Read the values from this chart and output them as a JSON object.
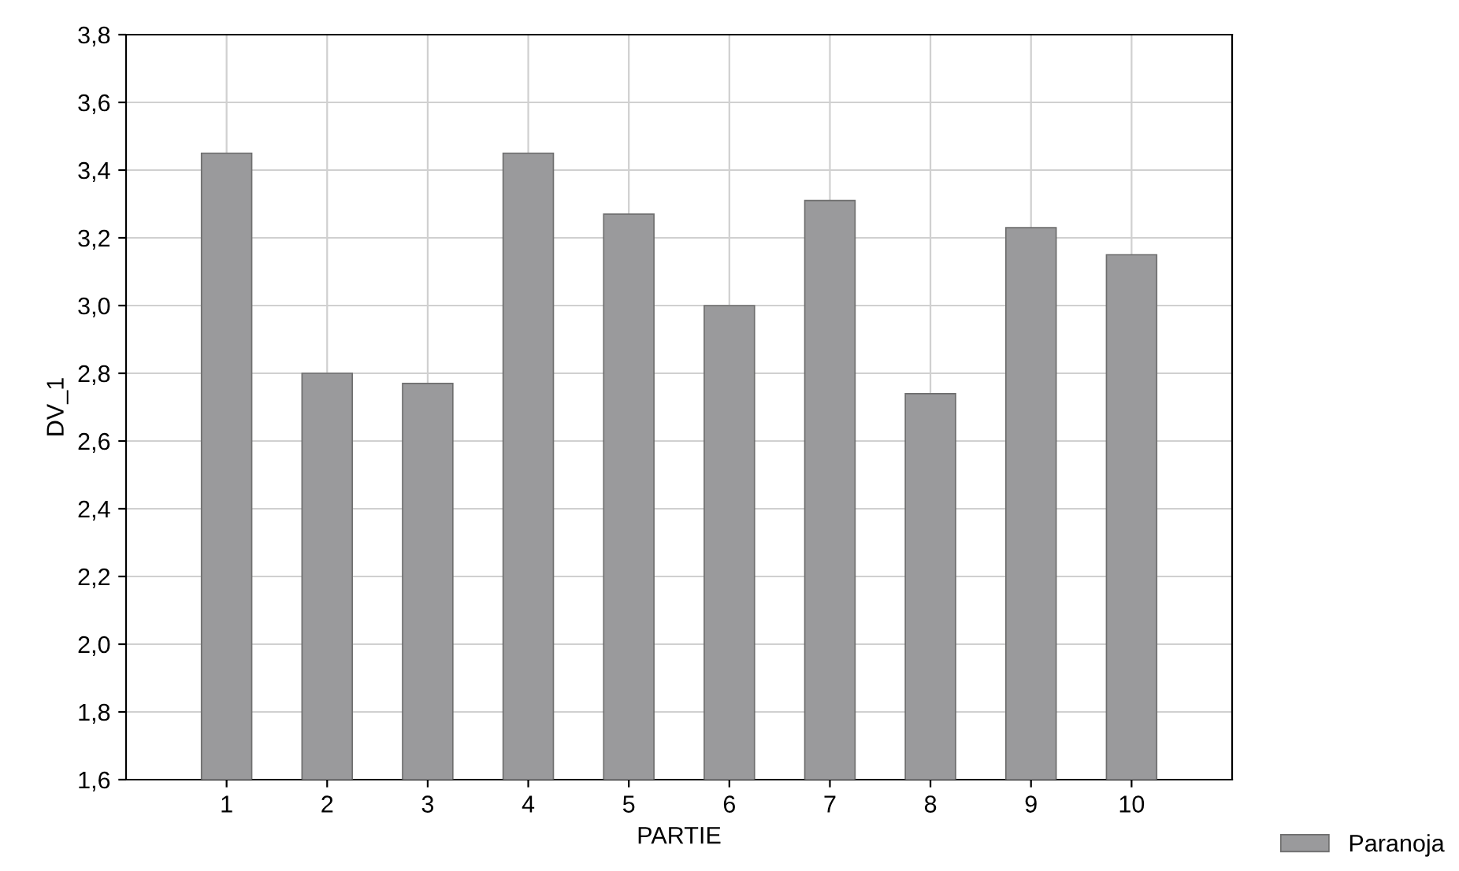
{
  "chart_data": {
    "type": "bar",
    "xlabel": "PARTIE",
    "ylabel": "DV_1",
    "categories": [
      "1",
      "2",
      "3",
      "4",
      "5",
      "6",
      "7",
      "8",
      "9",
      "10"
    ],
    "series": [
      {
        "name": "Paranoja",
        "color": "#9a9a9c",
        "values": [
          3.45,
          2.8,
          2.77,
          3.45,
          3.27,
          3.0,
          3.31,
          2.74,
          3.23,
          3.15
        ]
      }
    ],
    "ylim": [
      1.6,
      3.8
    ],
    "yticks": [
      {
        "value": 1.6,
        "label": "1,6"
      },
      {
        "value": 1.8,
        "label": "1,8"
      },
      {
        "value": 2.0,
        "label": "2,0"
      },
      {
        "value": 2.2,
        "label": "2,2"
      },
      {
        "value": 2.4,
        "label": "2,4"
      },
      {
        "value": 2.6,
        "label": "2,6"
      },
      {
        "value": 2.8,
        "label": "2,8"
      },
      {
        "value": 3.0,
        "label": "3,0"
      },
      {
        "value": 3.2,
        "label": "3,2"
      },
      {
        "value": 3.4,
        "label": "3,4"
      },
      {
        "value": 3.6,
        "label": "3,6"
      },
      {
        "value": 3.8,
        "label": "3,8"
      }
    ],
    "grid": true,
    "legend": "bottom right"
  }
}
